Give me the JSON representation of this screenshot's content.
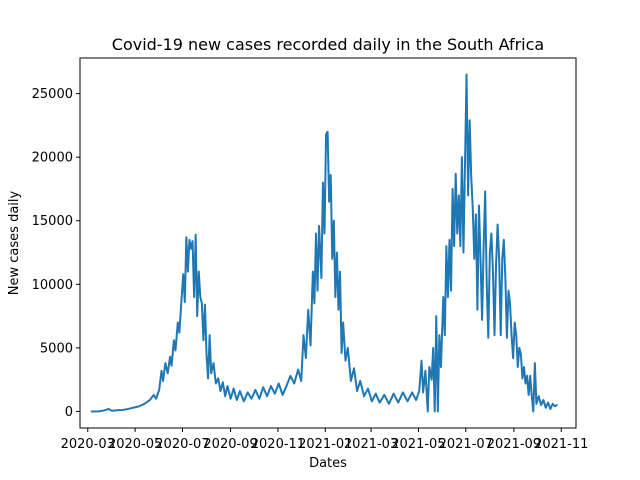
{
  "chart_data": {
    "type": "line",
    "title": "Covid-19 new cases recorded daily in the South Africa",
    "xlabel": "Dates",
    "ylabel": "New cases daily",
    "x_ticks": [
      "2020-03",
      "2020-05",
      "2020-07",
      "2020-09",
      "2020-11",
      "2021-01",
      "2021-03",
      "2021-05",
      "2021-07",
      "2021-09",
      "2021-11"
    ],
    "y_ticks": [
      0,
      5000,
      10000,
      15000,
      20000,
      25000
    ],
    "xlim": [
      "2020-02-20",
      "2021-11-20"
    ],
    "ylim": [
      -1300,
      27800
    ],
    "grid": false,
    "legend": "none",
    "series": [
      {
        "color": "#1f77b4",
        "points": [
          [
            "2020-03-05",
            0
          ],
          [
            "2020-03-15",
            10
          ],
          [
            "2020-03-22",
            80
          ],
          [
            "2020-03-28",
            200
          ],
          [
            "2020-04-01",
            60
          ],
          [
            "2020-04-08",
            100
          ],
          [
            "2020-04-15",
            120
          ],
          [
            "2020-04-22",
            200
          ],
          [
            "2020-04-29",
            300
          ],
          [
            "2020-05-06",
            400
          ],
          [
            "2020-05-13",
            600
          ],
          [
            "2020-05-20",
            900
          ],
          [
            "2020-05-25",
            1300
          ],
          [
            "2020-05-28",
            1000
          ],
          [
            "2020-06-01",
            1700
          ],
          [
            "2020-06-04",
            3200
          ],
          [
            "2020-06-06",
            2400
          ],
          [
            "2020-06-09",
            3800
          ],
          [
            "2020-06-12",
            3000
          ],
          [
            "2020-06-15",
            4300
          ],
          [
            "2020-06-17",
            3600
          ],
          [
            "2020-06-20",
            5600
          ],
          [
            "2020-06-22",
            4800
          ],
          [
            "2020-06-25",
            7000
          ],
          [
            "2020-06-27",
            6200
          ],
          [
            "2020-06-30",
            9000
          ],
          [
            "2020-07-02",
            10800
          ],
          [
            "2020-07-04",
            8600
          ],
          [
            "2020-07-06",
            13700
          ],
          [
            "2020-07-08",
            11000
          ],
          [
            "2020-07-10",
            13500
          ],
          [
            "2020-07-12",
            12800
          ],
          [
            "2020-07-14",
            13400
          ],
          [
            "2020-07-16",
            9000
          ],
          [
            "2020-07-18",
            13900
          ],
          [
            "2020-07-20",
            7500
          ],
          [
            "2020-07-22",
            11000
          ],
          [
            "2020-07-24",
            9000
          ],
          [
            "2020-07-26",
            8500
          ],
          [
            "2020-07-28",
            5600
          ],
          [
            "2020-07-30",
            8400
          ],
          [
            "2020-08-01",
            4500
          ],
          [
            "2020-08-03",
            2600
          ],
          [
            "2020-08-05",
            6000
          ],
          [
            "2020-08-07",
            3000
          ],
          [
            "2020-08-10",
            3800
          ],
          [
            "2020-08-13",
            2200
          ],
          [
            "2020-08-16",
            2600
          ],
          [
            "2020-08-19",
            1600
          ],
          [
            "2020-08-22",
            2300
          ],
          [
            "2020-08-25",
            1200
          ],
          [
            "2020-08-28",
            2000
          ],
          [
            "2020-09-01",
            1000
          ],
          [
            "2020-09-05",
            1800
          ],
          [
            "2020-09-09",
            900
          ],
          [
            "2020-09-13",
            1600
          ],
          [
            "2020-09-18",
            800
          ],
          [
            "2020-09-23",
            1500
          ],
          [
            "2020-09-28",
            1000
          ],
          [
            "2020-10-03",
            1700
          ],
          [
            "2020-10-08",
            1000
          ],
          [
            "2020-10-13",
            1900
          ],
          [
            "2020-10-18",
            1200
          ],
          [
            "2020-10-23",
            2000
          ],
          [
            "2020-10-28",
            1400
          ],
          [
            "2020-11-02",
            2200
          ],
          [
            "2020-11-07",
            1300
          ],
          [
            "2020-11-12",
            2000
          ],
          [
            "2020-11-17",
            2800
          ],
          [
            "2020-11-22",
            2200
          ],
          [
            "2020-11-27",
            3300
          ],
          [
            "2020-12-01",
            2400
          ],
          [
            "2020-12-04",
            6000
          ],
          [
            "2020-12-07",
            4200
          ],
          [
            "2020-12-10",
            8000
          ],
          [
            "2020-12-13",
            5200
          ],
          [
            "2020-12-16",
            11000
          ],
          [
            "2020-12-18",
            8500
          ],
          [
            "2020-12-20",
            14000
          ],
          [
            "2020-12-22",
            9500
          ],
          [
            "2020-12-24",
            14600
          ],
          [
            "2020-12-27",
            10500
          ],
          [
            "2020-12-29",
            18000
          ],
          [
            "2020-12-31",
            14000
          ],
          [
            "2021-01-02",
            21800
          ],
          [
            "2021-01-04",
            22000
          ],
          [
            "2021-01-06",
            16500
          ],
          [
            "2021-01-08",
            18600
          ],
          [
            "2021-01-10",
            12000
          ],
          [
            "2021-01-12",
            15000
          ],
          [
            "2021-01-14",
            9000
          ],
          [
            "2021-01-16",
            12500
          ],
          [
            "2021-01-18",
            8000
          ],
          [
            "2021-01-20",
            11000
          ],
          [
            "2021-01-22",
            4600
          ],
          [
            "2021-01-24",
            7000
          ],
          [
            "2021-01-27",
            4000
          ],
          [
            "2021-01-30",
            5000
          ],
          [
            "2021-02-03",
            2400
          ],
          [
            "2021-02-07",
            3400
          ],
          [
            "2021-02-11",
            1600
          ],
          [
            "2021-02-15",
            2400
          ],
          [
            "2021-02-20",
            1200
          ],
          [
            "2021-02-25",
            1800
          ],
          [
            "2021-03-02",
            800
          ],
          [
            "2021-03-07",
            1400
          ],
          [
            "2021-03-12",
            700
          ],
          [
            "2021-03-18",
            1300
          ],
          [
            "2021-03-24",
            600
          ],
          [
            "2021-03-30",
            1400
          ],
          [
            "2021-04-05",
            700
          ],
          [
            "2021-04-11",
            1500
          ],
          [
            "2021-04-17",
            800
          ],
          [
            "2021-04-23",
            1500
          ],
          [
            "2021-04-28",
            900
          ],
          [
            "2021-05-02",
            1600
          ],
          [
            "2021-05-05",
            4000
          ],
          [
            "2021-05-07",
            1500
          ],
          [
            "2021-05-10",
            3200
          ],
          [
            "2021-05-13",
            0
          ],
          [
            "2021-05-15",
            3500
          ],
          [
            "2021-05-18",
            2500
          ],
          [
            "2021-05-20",
            5000
          ],
          [
            "2021-05-22",
            0
          ],
          [
            "2021-05-24",
            7500
          ],
          [
            "2021-05-26",
            0
          ],
          [
            "2021-05-28",
            6000
          ],
          [
            "2021-05-30",
            3500
          ],
          [
            "2021-06-02",
            9000
          ],
          [
            "2021-06-04",
            6000
          ],
          [
            "2021-06-06",
            13000
          ],
          [
            "2021-06-08",
            9000
          ],
          [
            "2021-06-10",
            13500
          ],
          [
            "2021-06-12",
            9500
          ],
          [
            "2021-06-14",
            17500
          ],
          [
            "2021-06-16",
            13000
          ],
          [
            "2021-06-18",
            18700
          ],
          [
            "2021-06-20",
            14000
          ],
          [
            "2021-06-22",
            17000
          ],
          [
            "2021-06-24",
            13000
          ],
          [
            "2021-06-26",
            20000
          ],
          [
            "2021-06-28",
            12500
          ],
          [
            "2021-07-02",
            26500
          ],
          [
            "2021-07-04",
            17000
          ],
          [
            "2021-07-06",
            22900
          ],
          [
            "2021-07-08",
            18500
          ],
          [
            "2021-07-10",
            16000
          ],
          [
            "2021-07-12",
            12000
          ],
          [
            "2021-07-14",
            15500
          ],
          [
            "2021-07-16",
            8000
          ],
          [
            "2021-07-18",
            16200
          ],
          [
            "2021-07-20",
            12000
          ],
          [
            "2021-07-22",
            7200
          ],
          [
            "2021-07-24",
            13000
          ],
          [
            "2021-07-26",
            17300
          ],
          [
            "2021-07-28",
            10000
          ],
          [
            "2021-07-30",
            5800
          ],
          [
            "2021-08-01",
            12500
          ],
          [
            "2021-08-03",
            14000
          ],
          [
            "2021-08-05",
            11000
          ],
          [
            "2021-08-07",
            6000
          ],
          [
            "2021-08-09",
            11500
          ],
          [
            "2021-08-11",
            14700
          ],
          [
            "2021-08-13",
            12000
          ],
          [
            "2021-08-15",
            6000
          ],
          [
            "2021-08-17",
            12000
          ],
          [
            "2021-08-19",
            13500
          ],
          [
            "2021-08-21",
            10500
          ],
          [
            "2021-08-23",
            5800
          ],
          [
            "2021-08-25",
            9500
          ],
          [
            "2021-08-27",
            8500
          ],
          [
            "2021-08-29",
            6000
          ],
          [
            "2021-08-31",
            4200
          ],
          [
            "2021-09-02",
            7000
          ],
          [
            "2021-09-04",
            6000
          ],
          [
            "2021-09-06",
            3500
          ],
          [
            "2021-09-08",
            5000
          ],
          [
            "2021-09-10",
            4500
          ],
          [
            "2021-09-12",
            2600
          ],
          [
            "2021-09-14",
            3500
          ],
          [
            "2021-09-16",
            2200
          ],
          [
            "2021-09-18",
            2800
          ],
          [
            "2021-09-20",
            1300
          ],
          [
            "2021-09-22",
            2800
          ],
          [
            "2021-09-24",
            1200
          ],
          [
            "2021-09-26",
            0
          ],
          [
            "2021-09-28",
            3800
          ],
          [
            "2021-09-30",
            600
          ],
          [
            "2021-10-03",
            1200
          ],
          [
            "2021-10-06",
            500
          ],
          [
            "2021-10-09",
            900
          ],
          [
            "2021-10-12",
            300
          ],
          [
            "2021-10-15",
            700
          ],
          [
            "2021-10-18",
            200
          ],
          [
            "2021-10-21",
            600
          ],
          [
            "2021-10-24",
            400
          ],
          [
            "2021-10-27",
            550
          ]
        ]
      }
    ]
  }
}
